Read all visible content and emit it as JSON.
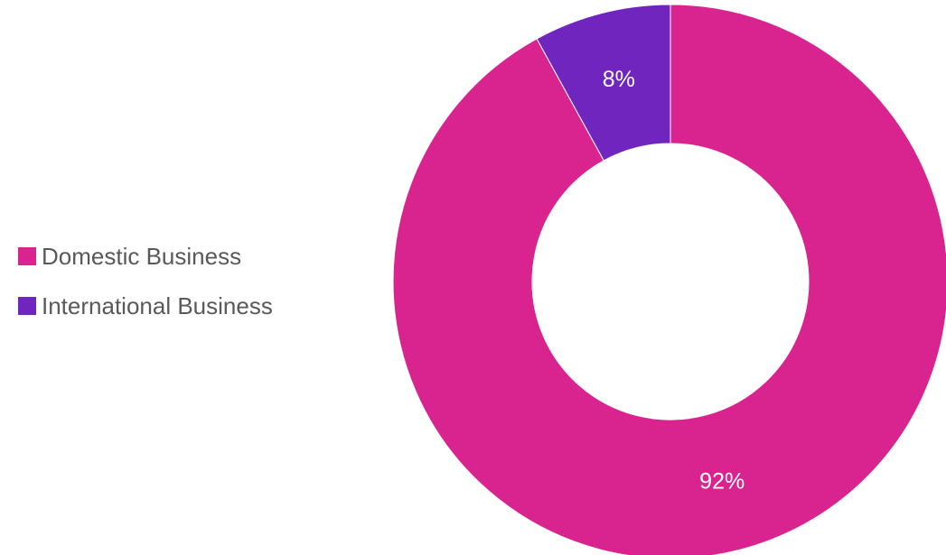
{
  "chart_data": {
    "type": "pie",
    "donut": true,
    "title": "",
    "legend_position": "left",
    "slices": [
      {
        "name": "Domestic Business",
        "value": 92,
        "label": "92%",
        "color": "#D9238F"
      },
      {
        "name": "International Business",
        "value": 8,
        "label": "8%",
        "color": "#7125BF"
      }
    ]
  }
}
